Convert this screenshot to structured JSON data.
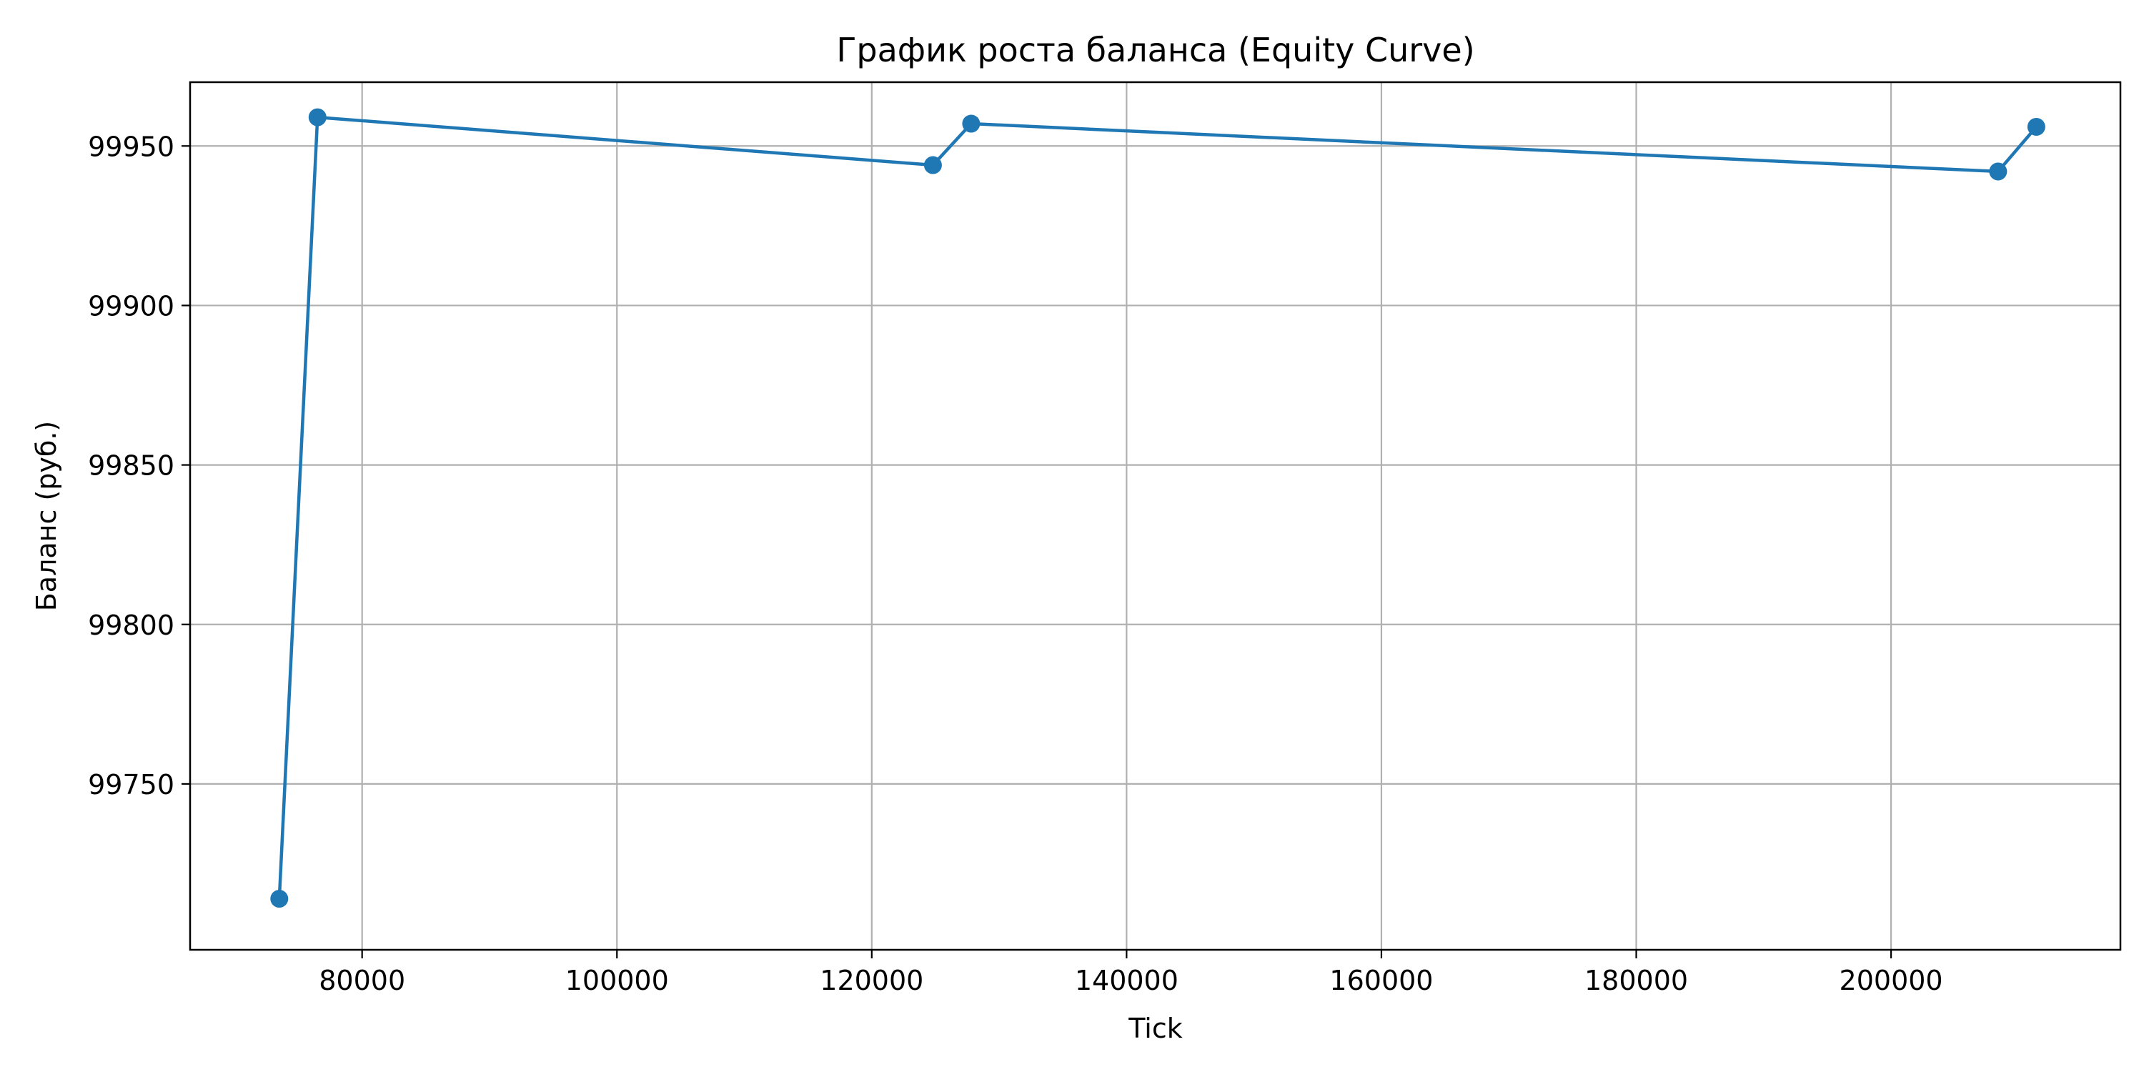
{
  "chart_data": {
    "type": "line",
    "title": "График роста баланса (Equity Curve)",
    "xlabel": "Tick",
    "ylabel": "Баланс (руб.)",
    "xlim": [
      66500,
      218000
    ],
    "ylim": [
      99698,
      99970
    ],
    "x_ticks": [
      80000,
      100000,
      120000,
      140000,
      160000,
      180000,
      200000
    ],
    "y_ticks": [
      99750,
      99800,
      99850,
      99900,
      99950
    ],
    "grid": true,
    "series": [
      {
        "x": [
          73500,
          76500,
          124800,
          127800,
          208400,
          211400
        ],
        "y": [
          99714,
          99959,
          99944,
          99957,
          99942,
          99956
        ]
      }
    ],
    "colors": {
      "line": "#1f77b4",
      "grid": "#b0b0b0",
      "axes": "#000000"
    }
  }
}
